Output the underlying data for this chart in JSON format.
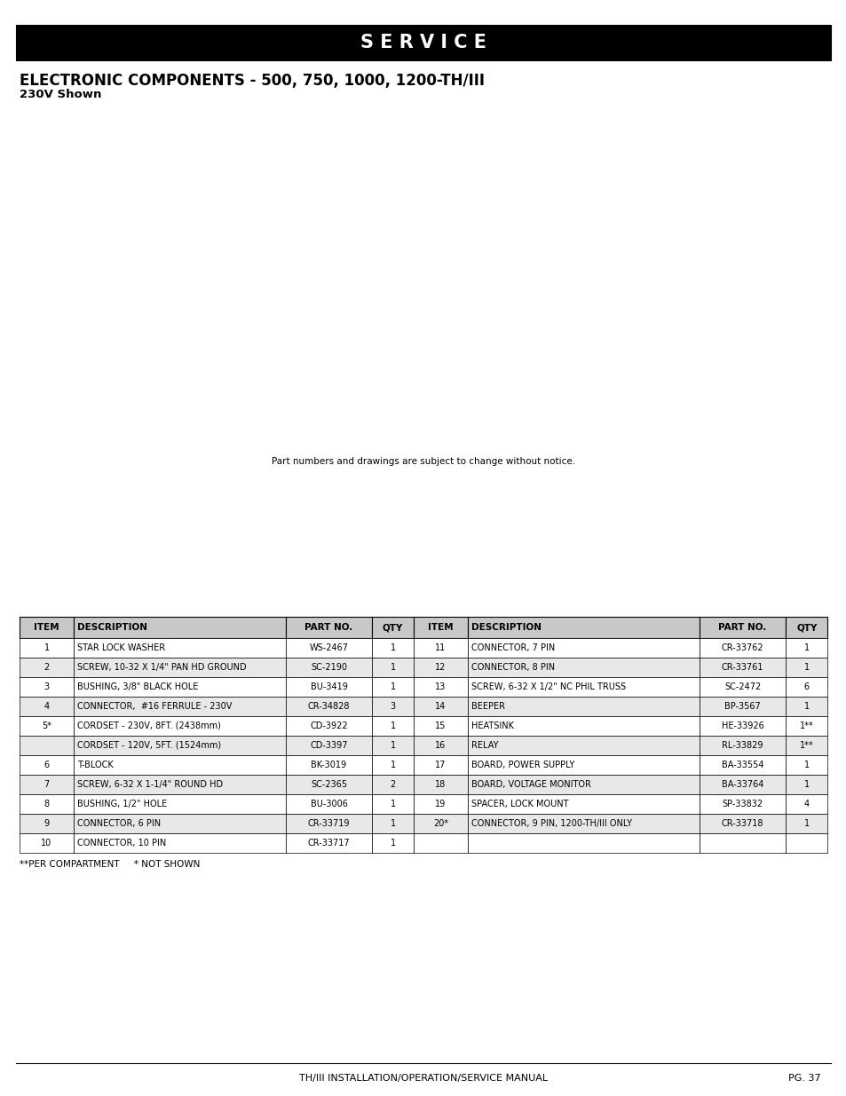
{
  "page_bg": "#ffffff",
  "header_bg": "#000000",
  "header_text": "S E R V I C E",
  "header_text_color": "#ffffff",
  "title_line1": "ELECTRONIC COMPONENTS - 500, 750, 1000, 1200-TH/III",
  "title_line2": "230V Shown",
  "diagram_note": "Part numbers and drawings are subject to change without notice.",
  "footer_left": "TH/III INSTALLATION/OPERATION/SERVICE MANUAL",
  "footer_right": "PG. 37",
  "footnote": "**PER COMPARTMENT     * NOT SHOWN",
  "table_header_bg": "#c8c8c8",
  "table_alt_bg": "#e8e8e8",
  "table_white_bg": "#ffffff",
  "table_border": "#000000",
  "table_headers": [
    "ITEM",
    "DESCRIPTION",
    "PART NO.",
    "QTY",
    "ITEM",
    "DESCRIPTION",
    "PART NO.",
    "QTY"
  ],
  "col_aligns": [
    "center",
    "left",
    "center",
    "center",
    "center",
    "left",
    "center",
    "center"
  ],
  "col_props": [
    0.055,
    0.215,
    0.088,
    0.042,
    0.055,
    0.235,
    0.088,
    0.042
  ],
  "table_rows": [
    [
      "1",
      "STAR LOCK WASHER",
      "WS-2467",
      "1",
      "11",
      "CONNECTOR, 7 PIN",
      "CR-33762",
      "1"
    ],
    [
      "2",
      "SCREW, 10-32 X 1/4\" PAN HD GROUND",
      "SC-2190",
      "1",
      "12",
      "CONNECTOR, 8 PIN",
      "CR-33761",
      "1"
    ],
    [
      "3",
      "BUSHING, 3/8\" BLACK HOLE",
      "BU-3419",
      "1",
      "13",
      "SCREW, 6-32 X 1/2\" NC PHIL TRUSS",
      "SC-2472",
      "6"
    ],
    [
      "4",
      "CONNECTOR,  #16 FERRULE - 230V",
      "CR-34828",
      "3",
      "14",
      "BEEPER",
      "BP-3567",
      "1"
    ],
    [
      "5*",
      "CORDSET - 230V, 8FT. (2438mm)",
      "CD-3922",
      "1",
      "15",
      "HEATSINK",
      "HE-33926",
      "1**"
    ],
    [
      "",
      "CORDSET - 120V, 5FT. (1524mm)",
      "CD-3397",
      "1",
      "16",
      "RELAY",
      "RL-33829",
      "1**"
    ],
    [
      "6",
      "T-BLOCK",
      "BK-3019",
      "1",
      "17",
      "BOARD, POWER SUPPLY",
      "BA-33554",
      "1"
    ],
    [
      "7",
      "SCREW, 6-32 X 1-1/4\" ROUND HD",
      "SC-2365",
      "2",
      "18",
      "BOARD, VOLTAGE MONITOR",
      "BA-33764",
      "1"
    ],
    [
      "8",
      "BUSHING, 1/2\" HOLE",
      "BU-3006",
      "1",
      "19",
      "SPACER, LOCK MOUNT",
      "SP-33832",
      "4"
    ],
    [
      "9",
      "CONNECTOR, 6 PIN",
      "CR-33719",
      "1",
      "20*",
      "CONNECTOR, 9 PIN, 1200-TH/III ONLY",
      "CR-33718",
      "1"
    ],
    [
      "10",
      "CONNECTOR, 10 PIN",
      "CR-33717",
      "1",
      "",
      "",
      "",
      ""
    ]
  ]
}
